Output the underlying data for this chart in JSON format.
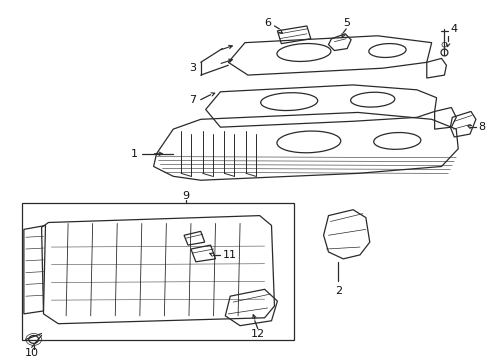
{
  "bg_color": "#ffffff",
  "line_color": "#2a2a2a",
  "text_color": "#111111",
  "fig_width": 4.89,
  "fig_height": 3.6,
  "dpi": 100
}
